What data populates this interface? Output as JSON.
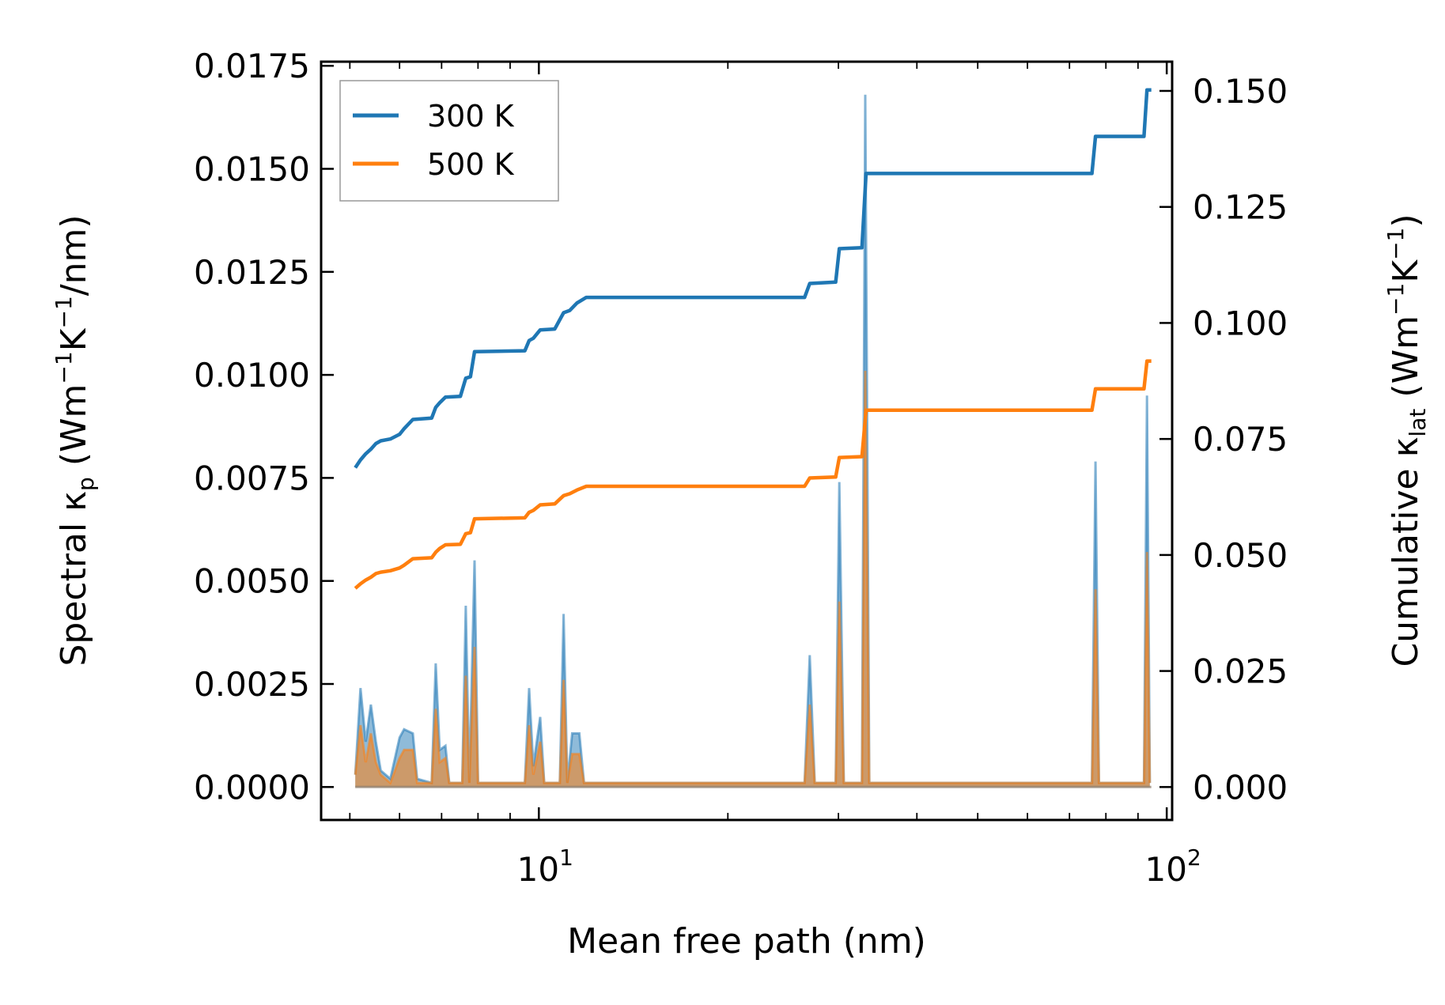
{
  "chart_data": {
    "type": "line",
    "x_scale": "log",
    "xlim": [
      4.5,
      102
    ],
    "ylim_left": [
      -0.0008,
      0.0176
    ],
    "ylim_right": [
      -0.0071,
      0.1563
    ],
    "xlabel": "Mean free path (nm)",
    "ylabel_left": {
      "prefix": "Spectral κ",
      "sub": "p",
      "unit_open": " (Wm",
      "sup1": "−1",
      "mid": "K",
      "sup2": "−1",
      "tail": "/nm)"
    },
    "ylabel_right": {
      "prefix": "Cumulative κ",
      "sub": "lat",
      "unit_open": " (Wm",
      "sup1": "−1",
      "mid": "K",
      "sup2": "−1",
      "tail": ")"
    },
    "x_ticks": [
      {
        "value": 10,
        "base": "10",
        "exp": "1"
      },
      {
        "value": 100,
        "base": "10",
        "exp": "2"
      }
    ],
    "y_ticks_left": [
      "0.0000",
      "0.0025",
      "0.0050",
      "0.0075",
      "0.0100",
      "0.0125",
      "0.0150",
      "0.0175"
    ],
    "y_ticks_right": [
      "0.000",
      "0.025",
      "0.050",
      "0.075",
      "0.100",
      "0.125",
      "0.150"
    ],
    "legend": [
      {
        "label": "300 K",
        "color": "#1f77b4"
      },
      {
        "label": "500 K",
        "color": "#ff7f0e"
      }
    ],
    "spectral_series": [
      {
        "name": "300 K",
        "color": "#1f77b4",
        "axis": "left",
        "points": [
          [
            5.1,
            0.0003
          ],
          [
            5.2,
            0.0024
          ],
          [
            5.3,
            0.0011
          ],
          [
            5.4,
            0.002
          ],
          [
            5.5,
            0.0011
          ],
          [
            5.6,
            0.0004
          ],
          [
            5.8,
            0.0002
          ],
          [
            6.0,
            0.0012
          ],
          [
            6.1,
            0.0014
          ],
          [
            6.3,
            0.0013
          ],
          [
            6.4,
            0.0002
          ],
          [
            6.75,
            0.0001
          ],
          [
            6.85,
            0.003
          ],
          [
            6.95,
            0.0009
          ],
          [
            7.1,
            0.001
          ],
          [
            7.2,
            0.0001
          ],
          [
            7.55,
            0.0001
          ],
          [
            7.65,
            0.0044
          ],
          [
            7.75,
            0.0001
          ],
          [
            7.9,
            0.0055
          ],
          [
            8.0,
            0.0001
          ],
          [
            9.5,
            0.0001
          ],
          [
            9.65,
            0.0024
          ],
          [
            9.8,
            0.0005
          ],
          [
            10.05,
            0.0017
          ],
          [
            10.2,
            0.0001
          ],
          [
            10.8,
            0.0001
          ],
          [
            10.95,
            0.0042
          ],
          [
            11.1,
            0.0001
          ],
          [
            11.3,
            0.0013
          ],
          [
            11.6,
            0.0013
          ],
          [
            11.8,
            0.0001
          ],
          [
            26.5,
            0.0001
          ],
          [
            27.0,
            0.0032
          ],
          [
            27.5,
            0.0001
          ],
          [
            29.7,
            0.0001
          ],
          [
            30.1,
            0.0074
          ],
          [
            30.6,
            0.0001
          ],
          [
            32.7,
            0.0001
          ],
          [
            33.1,
            0.0168
          ],
          [
            33.6,
            0.0001
          ],
          [
            76.0,
            0.0001
          ],
          [
            77.0,
            0.0079
          ],
          [
            78.0,
            0.0001
          ],
          [
            92.0,
            0.0001
          ],
          [
            93.0,
            0.0095
          ],
          [
            94.0,
            0.0001
          ]
        ]
      },
      {
        "name": "500 K",
        "color": "#ff7f0e",
        "axis": "left",
        "points": [
          [
            5.1,
            0.0003
          ],
          [
            5.2,
            0.0015
          ],
          [
            5.3,
            0.0006
          ],
          [
            5.4,
            0.0013
          ],
          [
            5.5,
            0.0006
          ],
          [
            5.6,
            0.0003
          ],
          [
            5.8,
            0.0001
          ],
          [
            6.0,
            0.0007
          ],
          [
            6.1,
            0.0009
          ],
          [
            6.3,
            0.0009
          ],
          [
            6.4,
            0.0001
          ],
          [
            6.75,
            0.0001
          ],
          [
            6.85,
            0.0019
          ],
          [
            6.95,
            0.0006
          ],
          [
            7.1,
            0.0007
          ],
          [
            7.2,
            0.0001
          ],
          [
            7.55,
            0.0001
          ],
          [
            7.65,
            0.0027
          ],
          [
            7.75,
            0.0001
          ],
          [
            7.9,
            0.0034
          ],
          [
            8.0,
            0.0001
          ],
          [
            9.5,
            0.0001
          ],
          [
            9.65,
            0.0015
          ],
          [
            9.8,
            0.0003
          ],
          [
            10.05,
            0.0011
          ],
          [
            10.2,
            0.0001
          ],
          [
            10.8,
            0.0001
          ],
          [
            10.95,
            0.0026
          ],
          [
            11.1,
            0.0001
          ],
          [
            11.3,
            0.0008
          ],
          [
            11.6,
            0.0008
          ],
          [
            11.8,
            0.0001
          ],
          [
            26.5,
            0.0001
          ],
          [
            27.0,
            0.002
          ],
          [
            27.5,
            0.0001
          ],
          [
            29.7,
            0.0001
          ],
          [
            30.1,
            0.0045
          ],
          [
            30.6,
            0.0001
          ],
          [
            32.7,
            0.0001
          ],
          [
            33.1,
            0.0101
          ],
          [
            33.6,
            0.0001
          ],
          [
            76.0,
            0.0001
          ],
          [
            77.0,
            0.0048
          ],
          [
            78.0,
            0.0001
          ],
          [
            92.0,
            0.0001
          ],
          [
            93.0,
            0.0057
          ],
          [
            94.0,
            0.0001
          ]
        ]
      }
    ],
    "cumulative_series": [
      {
        "name": "300 K",
        "color": "#1f77b4",
        "axis": "right",
        "points": [
          [
            5.1,
            0.0688
          ],
          [
            5.2,
            0.0705
          ],
          [
            5.3,
            0.0718
          ],
          [
            5.4,
            0.0728
          ],
          [
            5.5,
            0.074
          ],
          [
            5.6,
            0.0746
          ],
          [
            5.8,
            0.075
          ],
          [
            6.0,
            0.076
          ],
          [
            6.1,
            0.0772
          ],
          [
            6.3,
            0.0792
          ],
          [
            6.75,
            0.0795
          ],
          [
            6.85,
            0.0818
          ],
          [
            6.95,
            0.0828
          ],
          [
            7.1,
            0.084
          ],
          [
            7.5,
            0.0842
          ],
          [
            7.65,
            0.0881
          ],
          [
            7.78,
            0.0884
          ],
          [
            7.9,
            0.0938
          ],
          [
            9.5,
            0.094
          ],
          [
            9.65,
            0.0962
          ],
          [
            9.8,
            0.0967
          ],
          [
            10.05,
            0.0985
          ],
          [
            10.6,
            0.0987
          ],
          [
            10.95,
            0.1022
          ],
          [
            11.2,
            0.1027
          ],
          [
            11.5,
            0.1043
          ],
          [
            11.9,
            0.1055
          ],
          [
            26.5,
            0.1055
          ],
          [
            27.0,
            0.1085
          ],
          [
            29.7,
            0.1088
          ],
          [
            30.1,
            0.116
          ],
          [
            32.7,
            0.1162
          ],
          [
            33.2,
            0.1322
          ],
          [
            76.0,
            0.1322
          ],
          [
            77.0,
            0.1402
          ],
          [
            92.0,
            0.1402
          ],
          [
            93.0,
            0.1502
          ],
          [
            94.5,
            0.1502
          ]
        ]
      },
      {
        "name": "500 K",
        "color": "#ff7f0e",
        "axis": "right",
        "points": [
          [
            5.1,
            0.0428
          ],
          [
            5.2,
            0.0438
          ],
          [
            5.3,
            0.0446
          ],
          [
            5.4,
            0.0452
          ],
          [
            5.5,
            0.046
          ],
          [
            5.6,
            0.0463
          ],
          [
            5.8,
            0.0466
          ],
          [
            6.0,
            0.0472
          ],
          [
            6.1,
            0.0478
          ],
          [
            6.3,
            0.0492
          ],
          [
            6.75,
            0.0494
          ],
          [
            6.85,
            0.0506
          ],
          [
            6.95,
            0.0514
          ],
          [
            7.1,
            0.0522
          ],
          [
            7.5,
            0.0523
          ],
          [
            7.65,
            0.0546
          ],
          [
            7.78,
            0.0548
          ],
          [
            7.9,
            0.0578
          ],
          [
            9.5,
            0.058
          ],
          [
            9.65,
            0.0592
          ],
          [
            9.8,
            0.0596
          ],
          [
            10.05,
            0.0608
          ],
          [
            10.6,
            0.061
          ],
          [
            10.95,
            0.0628
          ],
          [
            11.2,
            0.0632
          ],
          [
            11.5,
            0.064
          ],
          [
            11.9,
            0.0648
          ],
          [
            26.5,
            0.0648
          ],
          [
            27.0,
            0.0666
          ],
          [
            29.7,
            0.0668
          ],
          [
            30.1,
            0.071
          ],
          [
            32.7,
            0.0712
          ],
          [
            33.2,
            0.0812
          ],
          [
            76.0,
            0.0812
          ],
          [
            77.0,
            0.0858
          ],
          [
            92.0,
            0.0858
          ],
          [
            93.0,
            0.0918
          ],
          [
            94.5,
            0.0918
          ]
        ]
      }
    ]
  }
}
